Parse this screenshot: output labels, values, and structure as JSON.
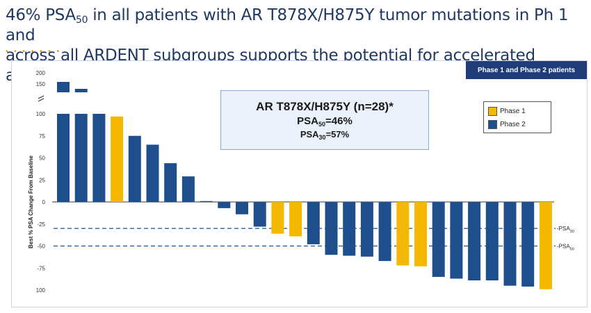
{
  "header": {
    "line1_prefix": "46% PSA",
    "line1_sub": "50",
    "line1_suffix": " in all patients with AR T878X/H875Y tumor mutations in Ph 1 and",
    "line2": "across all ARDENT subgroups supports the potential for accelerated approval"
  },
  "decor": {
    "dots": "• • • • • • •"
  },
  "banner": {
    "label": "Phase 1 and Phase 2 patients"
  },
  "callout": {
    "line1": "AR T878X/H875Y (n=28)*",
    "line2_prefix": "PSA",
    "line2_sub": "50",
    "line2_suffix": "=46%",
    "line3_prefix": "PSA",
    "line3_sub": "30",
    "line3_suffix": "=57%"
  },
  "legend": {
    "items": [
      {
        "label": "Phase 1",
        "color": "#f5b800"
      },
      {
        "label": "Phase 2",
        "color": "#1f4e8c"
      }
    ]
  },
  "colors": {
    "phase1": "#f5b800",
    "phase2": "#1f4e8c",
    "refline": "#1f4e8c",
    "axis": "#333333"
  },
  "chart_data": {
    "type": "bar",
    "title": "",
    "xlabel": "",
    "ylabel": "Best % PSA Change From Baseline",
    "ylim": [
      -100,
      100
    ],
    "broken_axis_ticks": [
      "200",
      "150"
    ],
    "ytick_labels": [
      "100",
      "75",
      "50",
      "25",
      "0",
      "-25",
      "-50",
      "-75",
      "100"
    ],
    "grid": false,
    "legend_position": "top-right",
    "series": [
      {
        "name": "Best % PSA Change From Baseline",
        "values": [
          155,
          140,
          100,
          97,
          75,
          65,
          44,
          29,
          1,
          -7,
          -14,
          -28,
          -36,
          -39,
          -48,
          -60,
          -61,
          -62,
          -67,
          -72,
          -73,
          -85,
          -87,
          -89,
          -89,
          -95,
          -96,
          -99
        ],
        "phase": [
          2,
          2,
          2,
          1,
          2,
          2,
          2,
          2,
          2,
          2,
          2,
          2,
          1,
          1,
          2,
          2,
          2,
          2,
          2,
          1,
          1,
          2,
          2,
          2,
          2,
          2,
          2,
          1
        ]
      }
    ],
    "reference_lines": [
      {
        "value": -30,
        "label_prefix": "PSA",
        "label_sub": "30"
      },
      {
        "value": -50,
        "label_prefix": "PSA",
        "label_sub": "50"
      }
    ]
  }
}
